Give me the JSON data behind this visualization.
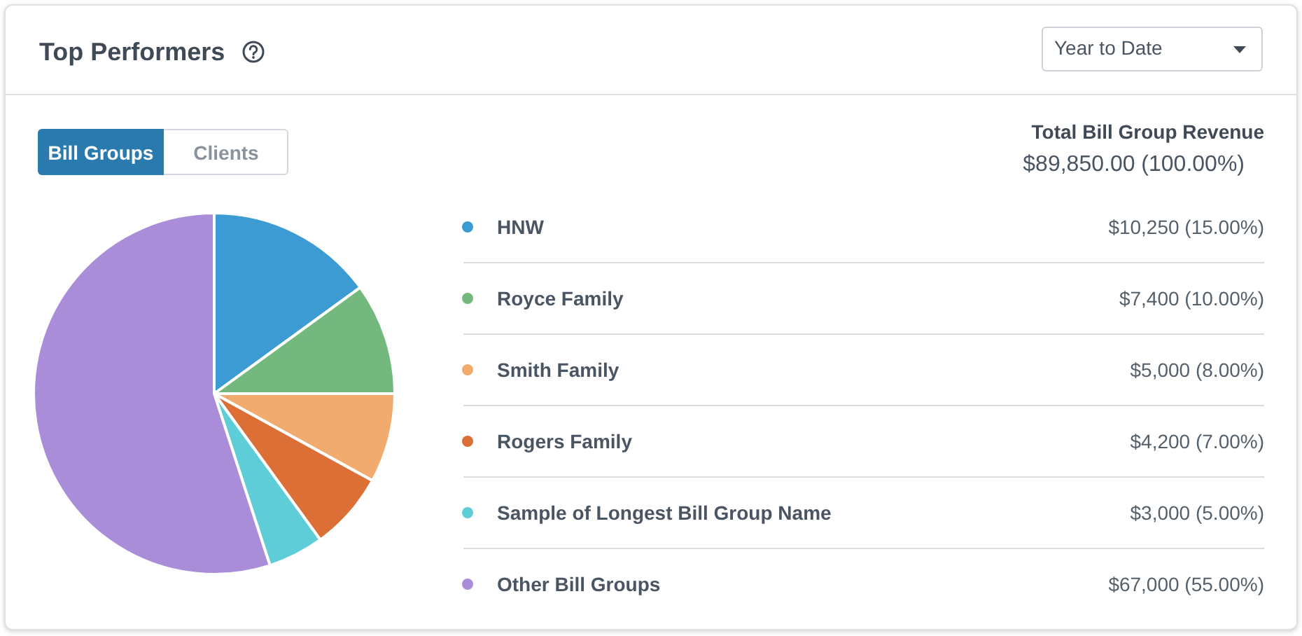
{
  "chart_data": {
    "type": "pie",
    "title": "Top Performers",
    "legend_title": "Total Bill Group Revenue",
    "categories": [
      "HNW",
      "Royce Family",
      "Smith Family",
      "Rogers Family",
      "Sample of Longest Bill Group Name",
      "Other Bill Groups"
    ],
    "values": [
      15,
      10,
      8,
      7,
      5,
      55
    ],
    "colors": [
      "#3d9bd3",
      "#73b97e",
      "#f1ab6e",
      "#dc6f35",
      "#5ecdd8",
      "#a98dd8"
    ],
    "value_labels": [
      "$10,250 (15.00%)",
      "$7,400 (10.00%)",
      "$5,000 (8.00%)",
      "$4,200 (7.00%)",
      "$3,000 (5.00%)",
      "$67,000 (55.00%)"
    ],
    "legend": "right",
    "annotations": [
      "Year to Date",
      "Bill Groups",
      "Clients",
      "$89,850.00 (100.00%)"
    ]
  }
}
